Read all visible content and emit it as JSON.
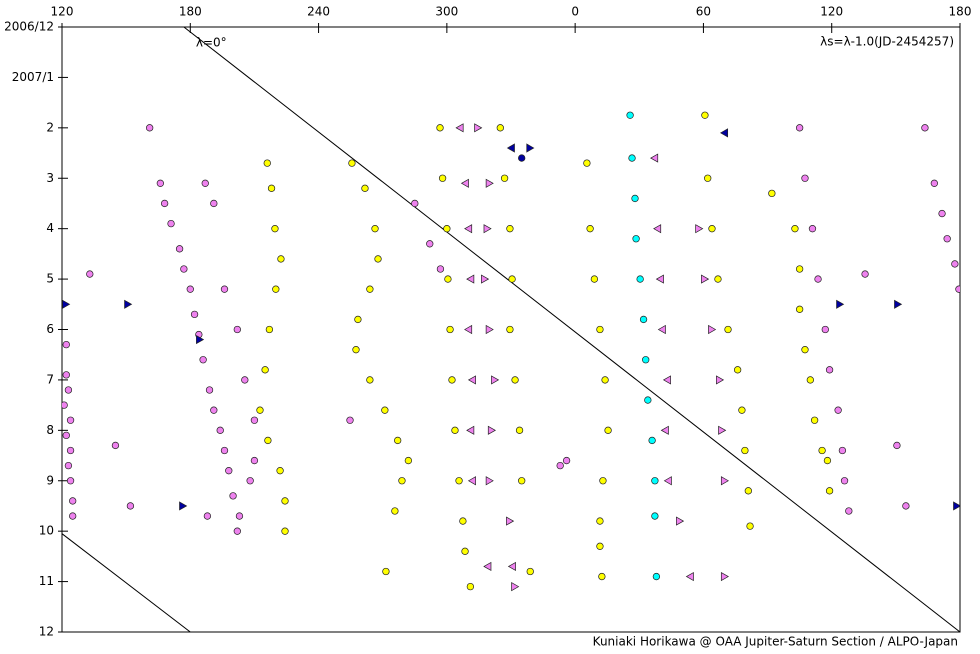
{
  "chart_data": {
    "type": "scatter",
    "annotation": "λs=λ-1.0(JD-2454257)",
    "credit": "Kuniaki Horikawa @ OAA Jupiter-Saturn Section / ALPO-Japan",
    "xlim": [
      120,
      540
    ],
    "xticks": [
      120,
      180,
      240,
      300,
      {
        "value": 360,
        "label": "0"
      },
      {
        "value": 420,
        "label": "60"
      },
      {
        "value": 480,
        "label": "120"
      },
      {
        "value": 540,
        "label": "180"
      }
    ],
    "ylim": [
      0,
      12
    ],
    "yticks": [
      {
        "value": 0,
        "label": "2006/12"
      },
      {
        "value": 1,
        "label": "2007/1"
      },
      2,
      3,
      4,
      5,
      6,
      7,
      8,
      9,
      10,
      11,
      12
    ],
    "lines": [
      {
        "label": "λ=0°",
        "color": "#000000",
        "x": [
          177,
          540
        ],
        "y": [
          0,
          12
        ]
      },
      {
        "color": "#000000",
        "x": [
          120,
          180
        ],
        "y": [
          10.05,
          12
        ]
      }
    ],
    "series": [
      {
        "marker": "circle",
        "color": "#ee82ee",
        "x": [
          122,
          123,
          121,
          124,
          122,
          124,
          123,
          124,
          125,
          125,
          122,
          161,
          166,
          168,
          171,
          175,
          177,
          180,
          182,
          184,
          186,
          189,
          191,
          194,
          196,
          198,
          200,
          203,
          202,
          187,
          191,
          196,
          202,
          205.5,
          210,
          210,
          208,
          133,
          145,
          152,
          188,
          285,
          292,
          297,
          254.7,
          353,
          356,
          465,
          467.5,
          471,
          473.6,
          477,
          479,
          483,
          485,
          486,
          488,
          523.6,
          528,
          531.6,
          534,
          537.6,
          539.5,
          495.6,
          510.5,
          514.7
        ],
        "y": [
          6.9,
          7.2,
          7.5,
          7.8,
          8.1,
          8.4,
          8.7,
          9.0,
          9.4,
          9.7,
          6.3,
          2.0,
          3.1,
          3.5,
          3.9,
          4.4,
          4.8,
          5.2,
          5.7,
          6.1,
          6.6,
          7.2,
          7.6,
          8.0,
          8.4,
          8.8,
          9.3,
          9.7,
          10.0,
          3.1,
          3.5,
          5.2,
          6.0,
          7.0,
          7.8,
          8.6,
          9.0,
          4.9,
          8.3,
          9.5,
          9.7,
          3.5,
          4.3,
          4.8,
          7.8,
          8.7,
          8.6,
          2.0,
          3.0,
          4.0,
          5.0,
          6.0,
          6.8,
          7.6,
          8.4,
          9.0,
          9.6,
          2.0,
          3.1,
          3.7,
          4.2,
          4.7,
          5.2,
          4.9,
          8.3,
          9.5
        ]
      },
      {
        "marker": "circle",
        "color": "#ffff00",
        "x": [
          216,
          218,
          219.6,
          222.4,
          220,
          217,
          215,
          212.6,
          216.3,
          222,
          224.3,
          224.3,
          255.6,
          261.7,
          266.4,
          267.8,
          264,
          258.4,
          257.5,
          264,
          271,
          277,
          282,
          279,
          275.7,
          271.5,
          296.8,
          298,
          300,
          300.5,
          301.5,
          302.4,
          303.8,
          305.7,
          307.5,
          308.5,
          311,
          325,
          327,
          329.5,
          330.5,
          329.5,
          331.9,
          334,
          335,
          339,
          365.5,
          367,
          369,
          371.6,
          374,
          375.4,
          373,
          371.6,
          371.6,
          372.5,
          420.7,
          422,
          424,
          426.8,
          431.5,
          436,
          438,
          439.4,
          441,
          441.8,
          452,
          462.8,
          465,
          465,
          467.5,
          470,
          472,
          475.5,
          478,
          479
        ],
        "y": [
          2.7,
          3.2,
          4.0,
          4.6,
          5.2,
          6.0,
          6.8,
          7.6,
          8.2,
          8.8,
          9.4,
          10.0,
          2.7,
          3.2,
          4.0,
          4.6,
          5.2,
          5.8,
          6.4,
          7.0,
          7.6,
          8.2,
          8.6,
          9.0,
          9.6,
          10.8,
          2.0,
          3.0,
          4.0,
          5.0,
          6.0,
          7.0,
          8.0,
          9.0,
          9.8,
          10.4,
          11.1,
          2.0,
          3.0,
          4.0,
          5.0,
          6.0,
          7.0,
          8.0,
          9.0,
          10.8,
          2.7,
          4.0,
          5.0,
          6.0,
          7.0,
          8.0,
          9.0,
          9.8,
          10.3,
          10.9,
          1.75,
          3.0,
          4.0,
          5.0,
          6.0,
          6.8,
          7.6,
          8.4,
          9.2,
          9.9,
          3.3,
          4.0,
          4.8,
          5.6,
          6.4,
          7.0,
          7.8,
          8.4,
          8.6,
          9.2
        ]
      },
      {
        "marker": "circle",
        "color": "#00ffff",
        "x": [
          385.7,
          386.6,
          388,
          388.5,
          390.4,
          392,
          393,
          394,
          396,
          397.3,
          397.3,
          398
        ],
        "y": [
          1.75,
          2.6,
          3.4,
          4.2,
          5.0,
          5.8,
          6.6,
          7.4,
          8.2,
          9.0,
          9.7,
          10.9
        ]
      },
      {
        "marker": "triangle-right",
        "color": "#ee82ee",
        "x": [
          314.6,
          320,
          319,
          317.8,
          320,
          322.5,
          321,
          320,
          329.5,
          331.9,
          418,
          420.7,
          424,
          427.7,
          428.7,
          430,
          409,
          430
        ],
        "y": [
          2.0,
          3.1,
          4.0,
          5.0,
          6.0,
          7.0,
          8.0,
          9.0,
          9.8,
          11.1,
          4.0,
          5.0,
          6.0,
          7.0,
          8.0,
          9.0,
          9.8,
          10.9
        ]
      },
      {
        "marker": "triangle-left",
        "color": "#ee82ee",
        "x": [
          306,
          308.5,
          310,
          311,
          310,
          311.8,
          311,
          311.8,
          319,
          330.5,
          397,
          398.4,
          399.7,
          400.6,
          403,
          402,
          403.4,
          413.7
        ],
        "y": [
          2.0,
          3.1,
          4.0,
          5.0,
          6.0,
          7.0,
          8.0,
          9.0,
          10.7,
          10.7,
          2.6,
          4.0,
          5.0,
          6.0,
          7.0,
          8.0,
          9.0,
          10.9
        ]
      },
      {
        "marker": "triangle-right",
        "color": "#0000a0",
        "x": [
          121.9,
          150.9,
          184.5,
          176.6,
          483.9,
          511,
          538.6,
          339
        ],
        "y": [
          5.5,
          5.5,
          6.2,
          9.5,
          5.5,
          5.5,
          9.5,
          2.4
        ]
      },
      {
        "marker": "triangle-left",
        "color": "#0000a0",
        "x": [
          330,
          429.7
        ],
        "y": [
          2.4,
          2.1
        ]
      },
      {
        "marker": "circle",
        "color": "#0000a0",
        "x": [
          335
        ],
        "y": [
          2.6
        ]
      }
    ]
  }
}
